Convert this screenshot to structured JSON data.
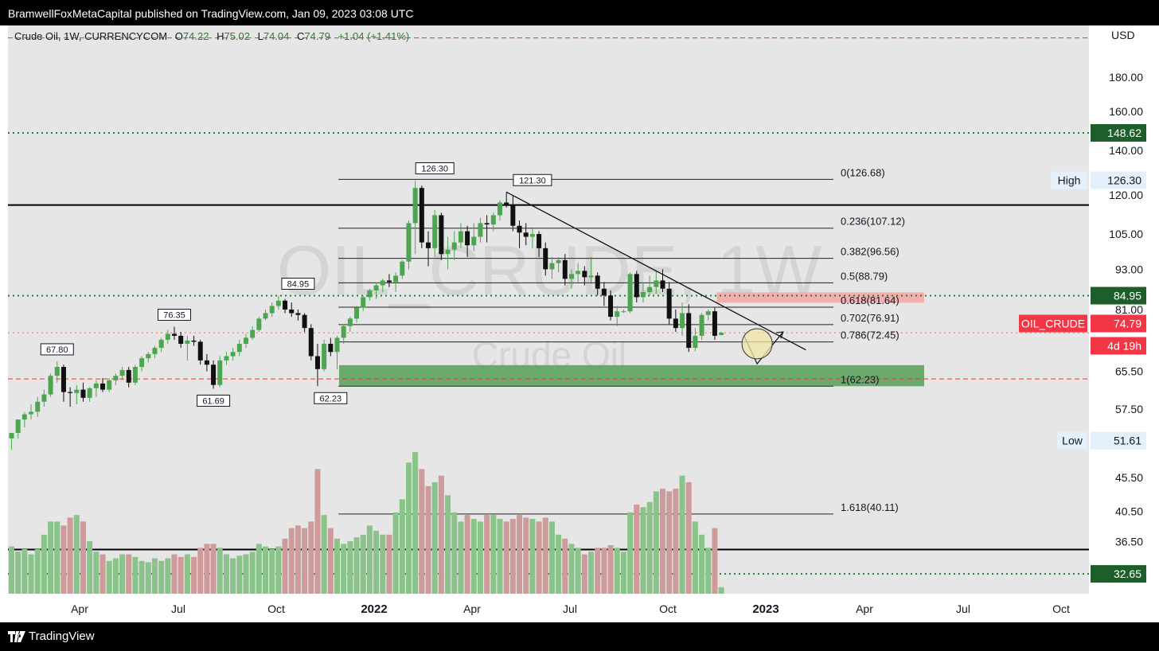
{
  "header": {
    "publisher_line": "BramwellFoxMetaCapital published on TradingView.com, Jan 09, 2023 03:08 UTC"
  },
  "legend": {
    "symbol": "Crude Oil, 1W, CURRENCYCOM",
    "o_label": "O",
    "o": "74.22",
    "h_label": "H",
    "h": "75.02",
    "l_label": "L",
    "l": "74.04",
    "c_label": "C",
    "c": "74.79",
    "change": "+1.04 (+1.41%)"
  },
  "footer": {
    "brand": "TradingView"
  },
  "chart_data": {
    "type": "candlestick",
    "scale": "log",
    "currency": "USD",
    "ylim": [
      30.5,
      215
    ],
    "y_ticks": [
      "180.00",
      "160.00",
      "140.00",
      "120.00",
      "105.00",
      "93.00",
      "81.00",
      "65.50",
      "57.50",
      "45.50",
      "40.50",
      "36.50"
    ],
    "x_ticks": [
      "Apr",
      "Jul",
      "Oct",
      "2022",
      "Apr",
      "Jul",
      "Oct",
      "2023",
      "Apr",
      "Jul",
      "Oct"
    ],
    "watermark": [
      "OIL_CRUDE, 1W",
      "Crude Oil"
    ],
    "candles": [
      {
        "o": 52.0,
        "h": 53.0,
        "l": 50.0,
        "c": 53.0,
        "v": 0.36
      },
      {
        "o": 53.0,
        "h": 55.0,
        "l": 52.0,
        "c": 55.5,
        "v": 0.32
      },
      {
        "o": 55.5,
        "h": 57.0,
        "l": 54.0,
        "c": 56.5,
        "v": 0.34
      },
      {
        "o": 56.5,
        "h": 58.5,
        "l": 55.5,
        "c": 57.0,
        "v": 0.3
      },
      {
        "o": 57.0,
        "h": 60.0,
        "l": 56.0,
        "c": 59.0,
        "v": 0.34
      },
      {
        "o": 59.0,
        "h": 61.5,
        "l": 58.0,
        "c": 60.5,
        "v": 0.45
      },
      {
        "o": 60.5,
        "h": 65.0,
        "l": 60.0,
        "c": 64.5,
        "v": 0.55
      },
      {
        "o": 64.5,
        "h": 67.8,
        "l": 63.0,
        "c": 66.5,
        "v": 0.55
      },
      {
        "o": 66.5,
        "h": 67.0,
        "l": 59.0,
        "c": 61.0,
        "v": 0.52
      },
      {
        "o": 61.0,
        "h": 62.0,
        "l": 58.0,
        "c": 60.8,
        "v": 0.58
      },
      {
        "o": 60.8,
        "h": 62.5,
        "l": 58.5,
        "c": 61.5,
        "v": 0.6
      },
      {
        "o": 61.5,
        "h": 63.0,
        "l": 59.0,
        "c": 59.8,
        "v": 0.55
      },
      {
        "o": 59.8,
        "h": 62.0,
        "l": 59.0,
        "c": 61.8,
        "v": 0.4
      },
      {
        "o": 61.8,
        "h": 63.5,
        "l": 60.0,
        "c": 62.8,
        "v": 0.32
      },
      {
        "o": 62.8,
        "h": 64.0,
        "l": 61.0,
        "c": 61.5,
        "v": 0.3
      },
      {
        "o": 61.5,
        "h": 64.0,
        "l": 61.0,
        "c": 63.5,
        "v": 0.25
      },
      {
        "o": 63.5,
        "h": 65.0,
        "l": 62.5,
        "c": 64.5,
        "v": 0.27
      },
      {
        "o": 64.5,
        "h": 66.5,
        "l": 63.5,
        "c": 65.8,
        "v": 0.3
      },
      {
        "o": 65.8,
        "h": 66.5,
        "l": 62.0,
        "c": 63.0,
        "v": 0.3
      },
      {
        "o": 63.0,
        "h": 67.0,
        "l": 62.5,
        "c": 66.5,
        "v": 0.28
      },
      {
        "o": 66.5,
        "h": 69.0,
        "l": 65.5,
        "c": 68.5,
        "v": 0.25
      },
      {
        "o": 68.5,
        "h": 70.0,
        "l": 67.5,
        "c": 69.5,
        "v": 0.24
      },
      {
        "o": 69.5,
        "h": 71.5,
        "l": 68.5,
        "c": 71.0,
        "v": 0.27
      },
      {
        "o": 71.0,
        "h": 73.5,
        "l": 70.0,
        "c": 73.0,
        "v": 0.25
      },
      {
        "o": 73.0,
        "h": 75.5,
        "l": 72.0,
        "c": 74.5,
        "v": 0.27
      },
      {
        "o": 74.5,
        "h": 76.35,
        "l": 73.0,
        "c": 74.0,
        "v": 0.3
      },
      {
        "o": 74.0,
        "h": 75.0,
        "l": 71.0,
        "c": 72.0,
        "v": 0.28
      },
      {
        "o": 72.0,
        "h": 74.0,
        "l": 68.0,
        "c": 72.8,
        "v": 0.3
      },
      {
        "o": 72.8,
        "h": 74.0,
        "l": 71.5,
        "c": 72.5,
        "v": 0.28
      },
      {
        "o": 72.5,
        "h": 73.0,
        "l": 67.0,
        "c": 68.0,
        "v": 0.35
      },
      {
        "o": 68.0,
        "h": 69.5,
        "l": 65.5,
        "c": 67.0,
        "v": 0.38
      },
      {
        "o": 67.0,
        "h": 68.0,
        "l": 61.69,
        "c": 62.5,
        "v": 0.38
      },
      {
        "o": 62.5,
        "h": 69.0,
        "l": 62.0,
        "c": 68.0,
        "v": 0.35
      },
      {
        "o": 68.0,
        "h": 70.0,
        "l": 67.0,
        "c": 69.0,
        "v": 0.3
      },
      {
        "o": 69.0,
        "h": 71.0,
        "l": 68.0,
        "c": 70.0,
        "v": 0.27
      },
      {
        "o": 70.0,
        "h": 73.0,
        "l": 69.0,
        "c": 72.0,
        "v": 0.29
      },
      {
        "o": 72.0,
        "h": 74.5,
        "l": 71.0,
        "c": 73.5,
        "v": 0.3
      },
      {
        "o": 73.5,
        "h": 76.5,
        "l": 73.0,
        "c": 75.5,
        "v": 0.32
      },
      {
        "o": 75.5,
        "h": 79.0,
        "l": 75.0,
        "c": 78.5,
        "v": 0.38
      },
      {
        "o": 78.5,
        "h": 81.0,
        "l": 78.0,
        "c": 80.0,
        "v": 0.36
      },
      {
        "o": 80.0,
        "h": 83.0,
        "l": 79.0,
        "c": 82.0,
        "v": 0.34
      },
      {
        "o": 82.0,
        "h": 84.95,
        "l": 81.0,
        "c": 83.5,
        "v": 0.36
      },
      {
        "o": 83.5,
        "h": 84.0,
        "l": 80.0,
        "c": 81.0,
        "v": 0.42
      },
      {
        "o": 81.0,
        "h": 83.0,
        "l": 79.0,
        "c": 80.0,
        "v": 0.5
      },
      {
        "o": 80.0,
        "h": 81.0,
        "l": 78.0,
        "c": 79.5,
        "v": 0.52
      },
      {
        "o": 79.5,
        "h": 80.0,
        "l": 75.0,
        "c": 76.0,
        "v": 0.5
      },
      {
        "o": 76.0,
        "h": 77.0,
        "l": 68.0,
        "c": 69.0,
        "v": 0.55
      },
      {
        "o": 69.0,
        "h": 72.0,
        "l": 62.23,
        "c": 66.0,
        "v": 0.95
      },
      {
        "o": 66.0,
        "h": 73.0,
        "l": 65.5,
        "c": 72.0,
        "v": 0.6
      },
      {
        "o": 72.0,
        "h": 73.5,
        "l": 69.0,
        "c": 70.0,
        "v": 0.5
      },
      {
        "o": 70.0,
        "h": 74.0,
        "l": 66.0,
        "c": 73.5,
        "v": 0.42
      },
      {
        "o": 73.5,
        "h": 77.0,
        "l": 72.0,
        "c": 76.5,
        "v": 0.38
      },
      {
        "o": 76.5,
        "h": 79.0,
        "l": 75.0,
        "c": 78.5,
        "v": 0.4
      },
      {
        "o": 78.5,
        "h": 82.0,
        "l": 77.5,
        "c": 81.5,
        "v": 0.43
      },
      {
        "o": 81.5,
        "h": 85.0,
        "l": 80.5,
        "c": 84.5,
        "v": 0.45
      },
      {
        "o": 84.5,
        "h": 87.0,
        "l": 83.5,
        "c": 86.5,
        "v": 0.52
      },
      {
        "o": 86.5,
        "h": 89.0,
        "l": 84.0,
        "c": 88.0,
        "v": 0.48
      },
      {
        "o": 88.0,
        "h": 90.0,
        "l": 86.0,
        "c": 89.5,
        "v": 0.45
      },
      {
        "o": 89.5,
        "h": 91.5,
        "l": 87.5,
        "c": 89.0,
        "v": 0.45
      },
      {
        "o": 89.0,
        "h": 92.0,
        "l": 86.0,
        "c": 91.0,
        "v": 0.62
      },
      {
        "o": 91.0,
        "h": 96.0,
        "l": 90.0,
        "c": 95.5,
        "v": 0.72
      },
      {
        "o": 95.5,
        "h": 110.0,
        "l": 93.0,
        "c": 109.0,
        "v": 1.0
      },
      {
        "o": 109.0,
        "h": 126.3,
        "l": 98.0,
        "c": 123.0,
        "v": 1.08
      },
      {
        "o": 123.0,
        "h": 124.0,
        "l": 100.0,
        "c": 102.0,
        "v": 0.95
      },
      {
        "o": 102.0,
        "h": 106.0,
        "l": 94.0,
        "c": 100.0,
        "v": 0.82
      },
      {
        "o": 100.0,
        "h": 114.0,
        "l": 97.0,
        "c": 112.0,
        "v": 0.85
      },
      {
        "o": 112.0,
        "h": 113.0,
        "l": 96.0,
        "c": 98.0,
        "v": 0.9
      },
      {
        "o": 98.0,
        "h": 104.0,
        "l": 93.0,
        "c": 99.5,
        "v": 0.75
      },
      {
        "o": 99.5,
        "h": 106.0,
        "l": 96.0,
        "c": 102.0,
        "v": 0.62
      },
      {
        "o": 102.0,
        "h": 109.0,
        "l": 100.0,
        "c": 106.0,
        "v": 0.55
      },
      {
        "o": 106.0,
        "h": 108.0,
        "l": 97.0,
        "c": 101.0,
        "v": 0.6
      },
      {
        "o": 101.0,
        "h": 109.0,
        "l": 99.0,
        "c": 104.0,
        "v": 0.57
      },
      {
        "o": 104.0,
        "h": 111.0,
        "l": 102.0,
        "c": 109.0,
        "v": 0.55
      },
      {
        "o": 109.0,
        "h": 112.0,
        "l": 102.0,
        "c": 108.5,
        "v": 0.6
      },
      {
        "o": 108.5,
        "h": 113.0,
        "l": 106.0,
        "c": 112.0,
        "v": 0.6
      },
      {
        "o": 112.0,
        "h": 118.0,
        "l": 110.0,
        "c": 117.0,
        "v": 0.57
      },
      {
        "o": 117.0,
        "h": 121.3,
        "l": 115.0,
        "c": 116.0,
        "v": 0.55
      },
      {
        "o": 116.0,
        "h": 120.0,
        "l": 106.0,
        "c": 108.0,
        "v": 0.57
      },
      {
        "o": 108.0,
        "h": 110.0,
        "l": 100.0,
        "c": 105.5,
        "v": 0.6
      },
      {
        "o": 105.5,
        "h": 109.0,
        "l": 101.0,
        "c": 104.0,
        "v": 0.58
      },
      {
        "o": 104.0,
        "h": 107.0,
        "l": 100.0,
        "c": 105.0,
        "v": 0.57
      },
      {
        "o": 105.0,
        "h": 106.0,
        "l": 97.0,
        "c": 100.0,
        "v": 0.55
      },
      {
        "o": 100.0,
        "h": 102.0,
        "l": 91.0,
        "c": 93.0,
        "v": 0.58
      },
      {
        "o": 93.0,
        "h": 97.0,
        "l": 90.0,
        "c": 95.0,
        "v": 0.55
      },
      {
        "o": 95.0,
        "h": 97.0,
        "l": 92.0,
        "c": 96.0,
        "v": 0.45
      },
      {
        "o": 96.0,
        "h": 98.0,
        "l": 88.0,
        "c": 90.0,
        "v": 0.42
      },
      {
        "o": 90.0,
        "h": 93.0,
        "l": 87.0,
        "c": 91.5,
        "v": 0.38
      },
      {
        "o": 91.5,
        "h": 95.0,
        "l": 88.5,
        "c": 92.5,
        "v": 0.35
      },
      {
        "o": 92.5,
        "h": 94.0,
        "l": 88.0,
        "c": 90.5,
        "v": 0.3
      },
      {
        "o": 90.5,
        "h": 97.0,
        "l": 89.0,
        "c": 91.0,
        "v": 0.32
      },
      {
        "o": 91.0,
        "h": 92.0,
        "l": 85.0,
        "c": 87.0,
        "v": 0.35
      },
      {
        "o": 87.0,
        "h": 89.0,
        "l": 82.0,
        "c": 85.0,
        "v": 0.35
      },
      {
        "o": 85.0,
        "h": 86.5,
        "l": 78.0,
        "c": 79.0,
        "v": 0.37
      },
      {
        "o": 79.0,
        "h": 82.0,
        "l": 76.5,
        "c": 80.5,
        "v": 0.35
      },
      {
        "o": 80.5,
        "h": 81.0,
        "l": 80.0,
        "c": 80.5,
        "v": 0.32
      },
      {
        "o": 80.5,
        "h": 92.0,
        "l": 80.0,
        "c": 91.5,
        "v": 0.62
      },
      {
        "o": 91.5,
        "h": 92.5,
        "l": 83.0,
        "c": 84.5,
        "v": 0.68
      },
      {
        "o": 84.5,
        "h": 89.0,
        "l": 83.0,
        "c": 86.0,
        "v": 0.66
      },
      {
        "o": 86.0,
        "h": 91.0,
        "l": 85.0,
        "c": 87.5,
        "v": 0.7
      },
      {
        "o": 87.5,
        "h": 92.5,
        "l": 85.5,
        "c": 89.5,
        "v": 0.78
      },
      {
        "o": 89.5,
        "h": 93.0,
        "l": 86.0,
        "c": 87.0,
        "v": 0.8
      },
      {
        "o": 87.0,
        "h": 89.0,
        "l": 77.0,
        "c": 78.5,
        "v": 0.78
      },
      {
        "o": 78.5,
        "h": 81.0,
        "l": 75.0,
        "c": 76.0,
        "v": 0.8
      },
      {
        "o": 76.0,
        "h": 83.0,
        "l": 74.0,
        "c": 80.0,
        "v": 0.9
      },
      {
        "o": 80.0,
        "h": 82.5,
        "l": 70.0,
        "c": 71.0,
        "v": 0.85
      },
      {
        "o": 71.0,
        "h": 76.0,
        "l": 70.2,
        "c": 74.0,
        "v": 0.55
      },
      {
        "o": 74.0,
        "h": 80.0,
        "l": 73.0,
        "c": 79.5,
        "v": 0.45
      },
      {
        "o": 79.5,
        "h": 81.0,
        "l": 78.0,
        "c": 80.5,
        "v": 0.35
      },
      {
        "o": 80.5,
        "h": 81.5,
        "l": 73.0,
        "c": 74.0,
        "v": 0.5
      },
      {
        "o": 74.22,
        "h": 75.02,
        "l": 74.04,
        "c": 74.79,
        "v": 0.05
      }
    ],
    "peak_labels": [
      "67.80",
      "76.35",
      "61.69",
      "84.95",
      "62.23",
      "126.30",
      "121.30"
    ],
    "fib_levels": [
      {
        "label": "0(126.68)",
        "price": 126.68
      },
      {
        "label": "0.236(107.12)",
        "price": 107.12
      },
      {
        "label": "0.382(96.56)",
        "price": 96.56
      },
      {
        "label": "0.5(88.79)",
        "price": 88.79
      },
      {
        "label": "0.618(81.64)",
        "price": 81.64
      },
      {
        "label": "0.702(76.91)",
        "price": 76.91
      },
      {
        "label": "0.786(72.45)",
        "price": 72.45
      },
      {
        "label": "1(62.23)",
        "price": 62.23
      },
      {
        "label": "1.618(40.11)",
        "price": 40.11
      }
    ],
    "horizontal_lines": [
      {
        "price": 148.62,
        "style": "dotted",
        "color": "#1e7e34"
      },
      {
        "price": 84.95,
        "style": "dotted",
        "color": "#1e7e34"
      },
      {
        "price": 32.65,
        "style": "dotted",
        "color": "#1e7e34"
      },
      {
        "price": 116.0,
        "style": "solid",
        "color": "#000000"
      },
      {
        "price": 35.5,
        "style": "solid",
        "color": "#000000"
      },
      {
        "price": 206.0,
        "style": "dashed",
        "color": "#e53935"
      },
      {
        "price": 63.8,
        "style": "dashed",
        "color": "#e53935"
      },
      {
        "price": 74.79,
        "style": "dotted",
        "color": "#e53935"
      }
    ],
    "zones": [
      {
        "from": 62.23,
        "to": 66.9,
        "color": "#4c9a4f"
      },
      {
        "from": 82.9,
        "to": 85.9,
        "color": "#f5a7a7"
      }
    ],
    "trendline": {
      "from": {
        "candle": 76,
        "price": 121.3
      },
      "to": {
        "candle": 122,
        "price": 70.5
      }
    },
    "projection": [
      {
        "candle": 112.5,
        "price": 74.0
      },
      {
        "candle": 114.5,
        "price": 67.2
      },
      {
        "candle": 118.5,
        "price": 75.0
      }
    ],
    "price_axis_labels": [
      {
        "text": "148.62",
        "price": 148.62,
        "bg": "#1e5e2a",
        "fg": "#ffffff"
      },
      {
        "text": "High",
        "price": 126.3,
        "bg": "#e3f0fb",
        "fg": "#131722",
        "kind": "tag"
      },
      {
        "text": "126.30",
        "price": 126.3,
        "bg": "#e3f0fb",
        "fg": "#131722"
      },
      {
        "text": "84.95",
        "price": 84.95,
        "bg": "#1e5e2a",
        "fg": "#ffffff"
      },
      {
        "text": "OIL_CRUDE",
        "price": 77.2,
        "bg": "#f23645",
        "fg": "#ffffff",
        "kind": "tag"
      },
      {
        "text": "74.79",
        "price": 77.2,
        "bg": "#f23645",
        "fg": "#ffffff"
      },
      {
        "text": "4d 19h",
        "price": 71.5,
        "bg": "#f23645",
        "fg": "#ffffff"
      },
      {
        "text": "Low",
        "price": 51.61,
        "bg": "#e3f0fb",
        "fg": "#131722",
        "kind": "tag"
      },
      {
        "text": "51.61",
        "price": 51.61,
        "bg": "#e3f0fb",
        "fg": "#131722"
      },
      {
        "text": "32.65",
        "price": 32.65,
        "bg": "#1e5e2a",
        "fg": "#ffffff"
      }
    ]
  }
}
